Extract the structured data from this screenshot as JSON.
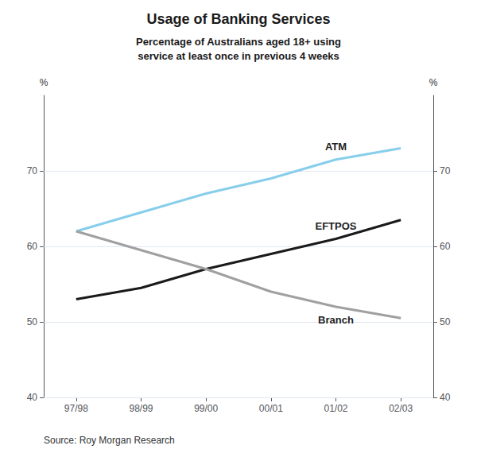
{
  "chart_data": {
    "type": "line",
    "title": "Usage of Banking Services",
    "subtitle": "Percentage of Australians aged 18+ using\nservice at least once in previous 4 weeks",
    "categories": [
      "97/98",
      "98/99",
      "99/00",
      "00/01",
      "01/02",
      "02/03"
    ],
    "series": [
      {
        "name": "ATM",
        "color": "#87CEEB",
        "values": [
          62.0,
          64.5,
          67.0,
          69.0,
          71.5,
          73.0
        ]
      },
      {
        "name": "EFTPOS",
        "color": "#1a1a1a",
        "values": [
          53.0,
          54.5,
          57.0,
          59.0,
          61.0,
          63.5
        ]
      },
      {
        "name": "Branch",
        "color": "#a0a0a0",
        "values": [
          62.0,
          59.5,
          57.0,
          54.0,
          52.0,
          50.5
        ]
      }
    ],
    "ylabel": "%",
    "y2label": "%",
    "ylim": [
      40,
      80
    ],
    "yticks": [
      40,
      50,
      60,
      70
    ],
    "y2lim": [
      40,
      80
    ],
    "y2ticks": [
      40,
      50,
      60,
      70
    ],
    "annotations": [
      "Source: Roy Morgan Research"
    ],
    "grid": true
  }
}
